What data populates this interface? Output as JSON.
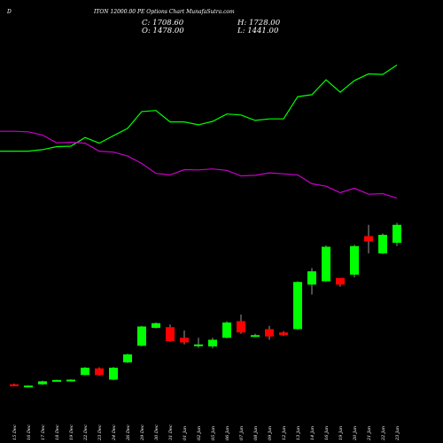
{
  "chart_data": {
    "type": "candlestick",
    "title_prefix": "D",
    "title": "ITON 12000.00 PE Options Chart MunafaSutra.com",
    "ohlc": {
      "open_label": "O: 1478.00",
      "high_label": "H: 1728.00",
      "low_label": "L: 1441.00",
      "close_label": "C: 1708.60"
    },
    "colors": {
      "up": "#00ff00",
      "down": "#ff0000",
      "upper_line": "#00ff00",
      "lower_line": "#cc00cc",
      "background": "#000000"
    },
    "categories": [
      "15 Dec",
      "16 Dec",
      "17 Dec",
      "18 Dec",
      "19 Dec",
      "22 Dec",
      "23 Dec",
      "24 Dec",
      "26 Dec",
      "29 Dec",
      "30 Dec",
      "31 Dec",
      "01 Jan",
      "02 Jan",
      "05 Jan",
      "06 Jan",
      "07 Jan",
      "08 Jan",
      "09 Jan",
      "12 Jan",
      "13 Jan",
      "14 Jan",
      "16 Jan",
      "19 Jan",
      "20 Jan",
      "21 Jan",
      "22 Jan",
      "23 Jan"
    ],
    "candles": [
      {
        "o": 110,
        "h": 112,
        "l": 104,
        "c": 104
      },
      {
        "o": 105,
        "h": 107,
        "l": 104,
        "c": 106
      },
      {
        "o": 110,
        "h": 121,
        "l": 108,
        "c": 119
      },
      {
        "o": 120,
        "h": 124,
        "l": 119,
        "c": 123
      },
      {
        "o": 122,
        "h": 125,
        "l": 121,
        "c": 124
      },
      {
        "o": 138,
        "h": 162,
        "l": 137,
        "c": 160
      },
      {
        "o": 158,
        "h": 161,
        "l": 136,
        "c": 138
      },
      {
        "o": 124,
        "h": 162,
        "l": 122,
        "c": 160
      },
      {
        "o": 176,
        "h": 202,
        "l": 174,
        "c": 200
      },
      {
        "o": 226,
        "h": 286,
        "l": 224,
        "c": 284
      },
      {
        "o": 280,
        "h": 296,
        "l": 278,
        "c": 294
      },
      {
        "o": 282,
        "h": 290,
        "l": 238,
        "c": 240
      },
      {
        "o": 250,
        "h": 272,
        "l": 230,
        "c": 236
      },
      {
        "o": 225,
        "h": 250,
        "l": 220,
        "c": 230
      },
      {
        "o": 224,
        "h": 250,
        "l": 218,
        "c": 244
      },
      {
        "o": 250,
        "h": 300,
        "l": 248,
        "c": 296
      },
      {
        "o": 300,
        "h": 320,
        "l": 262,
        "c": 266
      },
      {
        "o": 256,
        "h": 262,
        "l": 252,
        "c": 258
      },
      {
        "o": 276,
        "h": 286,
        "l": 244,
        "c": 254
      },
      {
        "o": 266,
        "h": 270,
        "l": 256,
        "c": 258
      },
      {
        "o": 276,
        "h": 420,
        "l": 274,
        "c": 418
      },
      {
        "o": 410,
        "h": 460,
        "l": 380,
        "c": 450
      },
      {
        "o": 420,
        "h": 528,
        "l": 418,
        "c": 524
      },
      {
        "o": 430,
        "h": 430,
        "l": 404,
        "c": 410
      },
      {
        "o": 440,
        "h": 530,
        "l": 432,
        "c": 526
      },
      {
        "o": 556,
        "h": 590,
        "l": 504,
        "c": 540
      },
      {
        "o": 504,
        "h": 564,
        "l": 502,
        "c": 560
      },
      {
        "o": 536,
        "h": 596,
        "l": 526,
        "c": 590
      }
    ],
    "upper_line": [
      1200,
      1200,
      1206,
      1218,
      1220,
      1255,
      1232,
      1262,
      1292,
      1360,
      1364,
      1318,
      1318,
      1306,
      1320,
      1350,
      1346,
      1324,
      1330,
      1330,
      1420,
      1428,
      1488,
      1438,
      1485,
      1512,
      1510,
      1548
    ],
    "lower_line": [
      1280,
      1278,
      1265,
      1233,
      1236,
      1232,
      1200,
      1196,
      1180,
      1150,
      1110,
      1104,
      1125,
      1124,
      1128,
      1122,
      1100,
      1102,
      1112,
      1108,
      1104,
      1068,
      1058,
      1032,
      1050,
      1026,
      1028,
      1010
    ],
    "line_scale": {
      "min": 980,
      "max": 1560
    },
    "candle_scale": {
      "min": 80,
      "max": 600
    }
  }
}
